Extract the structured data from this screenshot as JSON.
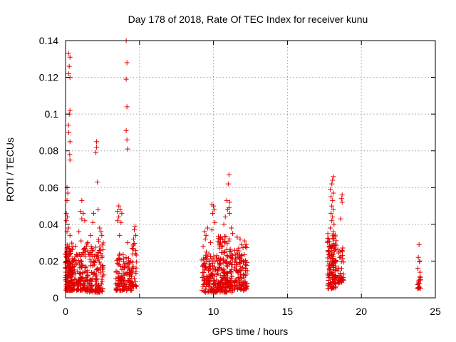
{
  "chart_data": {
    "type": "scatter",
    "title": "Day 178 of 2018, Rate Of TEC Index for receiver kunu",
    "xlabel": "GPS time / hours",
    "ylabel": "ROTI / TECUs",
    "xlim": [
      0,
      25
    ],
    "ylim": [
      0,
      0.14
    ],
    "grid": true,
    "marker": "+",
    "color": "#e00000",
    "xticks": [
      {
        "value": 0,
        "label": "0"
      },
      {
        "value": 5,
        "label": "5"
      },
      {
        "value": 10,
        "label": "10"
      },
      {
        "value": 15,
        "label": "15"
      },
      {
        "value": 20,
        "label": "20"
      },
      {
        "value": 25,
        "label": "25"
      }
    ],
    "yticks": [
      {
        "value": 0,
        "label": "0"
      },
      {
        "value": 0.02,
        "label": "0.02"
      },
      {
        "value": 0.04,
        "label": "0.04"
      },
      {
        "value": 0.06,
        "label": "0.06"
      },
      {
        "value": 0.08,
        "label": "0.08"
      },
      {
        "value": 0.1,
        "label": "0.1"
      },
      {
        "value": 0.12,
        "label": "0.12"
      },
      {
        "value": 0.14,
        "label": "0.14"
      }
    ],
    "clusters": [
      {
        "x": [
          0.0,
          0.5
        ],
        "ylo": 0.004,
        "yhi": 0.03,
        "n": 150
      },
      {
        "x": [
          0.5,
          1.2
        ],
        "ylo": 0.004,
        "yhi": 0.025,
        "n": 90
      },
      {
        "x": [
          1.2,
          2.0
        ],
        "ylo": 0.003,
        "yhi": 0.03,
        "n": 90
      },
      {
        "x": [
          2.0,
          2.6
        ],
        "ylo": 0.003,
        "yhi": 0.032,
        "n": 70
      },
      {
        "x": [
          3.4,
          4.0
        ],
        "ylo": 0.004,
        "yhi": 0.025,
        "n": 80
      },
      {
        "x": [
          4.0,
          4.5
        ],
        "ylo": 0.004,
        "yhi": 0.022,
        "n": 50
      },
      {
        "x": [
          4.5,
          4.8
        ],
        "ylo": 0.006,
        "yhi": 0.03,
        "n": 30
      },
      {
        "x": [
          9.2,
          10.3
        ],
        "ylo": 0.003,
        "yhi": 0.025,
        "n": 130
      },
      {
        "x": [
          10.3,
          11.3
        ],
        "ylo": 0.003,
        "yhi": 0.034,
        "n": 170
      },
      {
        "x": [
          11.4,
          12.3
        ],
        "ylo": 0.004,
        "yhi": 0.028,
        "n": 110
      },
      {
        "x": [
          17.7,
          18.3
        ],
        "ylo": 0.005,
        "yhi": 0.035,
        "n": 130
      },
      {
        "x": [
          18.4,
          18.8
        ],
        "ylo": 0.008,
        "yhi": 0.028,
        "n": 40
      },
      {
        "x": [
          23.8,
          24.0
        ],
        "ylo": 0.005,
        "yhi": 0.022,
        "n": 20
      }
    ],
    "points": [
      {
        "x": 0.2,
        "y": 0.133
      },
      {
        "x": 0.3,
        "y": 0.131
      },
      {
        "x": 0.25,
        "y": 0.126
      },
      {
        "x": 0.2,
        "y": 0.122
      },
      {
        "x": 0.3,
        "y": 0.12
      },
      {
        "x": 0.3,
        "y": 0.102
      },
      {
        "x": 0.25,
        "y": 0.1
      },
      {
        "x": 0.2,
        "y": 0.094
      },
      {
        "x": 0.22,
        "y": 0.09
      },
      {
        "x": 0.3,
        "y": 0.085
      },
      {
        "x": 0.28,
        "y": 0.078
      },
      {
        "x": 0.3,
        "y": 0.075
      },
      {
        "x": 0.1,
        "y": 0.06
      },
      {
        "x": 0.15,
        "y": 0.057
      },
      {
        "x": 0.1,
        "y": 0.053
      },
      {
        "x": 0.05,
        "y": 0.046
      },
      {
        "x": 0.12,
        "y": 0.044
      },
      {
        "x": 0.05,
        "y": 0.042
      },
      {
        "x": 0.2,
        "y": 0.038
      },
      {
        "x": 0.1,
        "y": 0.036
      },
      {
        "x": 0.3,
        "y": 0.034
      },
      {
        "x": 1.1,
        "y": 0.053
      },
      {
        "x": 1.0,
        "y": 0.047
      },
      {
        "x": 1.2,
        "y": 0.046
      },
      {
        "x": 1.1,
        "y": 0.043
      },
      {
        "x": 1.3,
        "y": 0.042
      },
      {
        "x": 0.9,
        "y": 0.036
      },
      {
        "x": 1.05,
        "y": 0.031
      },
      {
        "x": 0.65,
        "y": 0.028
      },
      {
        "x": 2.1,
        "y": 0.085
      },
      {
        "x": 2.1,
        "y": 0.082
      },
      {
        "x": 2.05,
        "y": 0.079
      },
      {
        "x": 2.15,
        "y": 0.063
      },
      {
        "x": 1.9,
        "y": 0.046
      },
      {
        "x": 2.2,
        "y": 0.048
      },
      {
        "x": 2.3,
        "y": 0.038
      },
      {
        "x": 1.85,
        "y": 0.041
      },
      {
        "x": 1.7,
        "y": 0.034
      },
      {
        "x": 1.5,
        "y": 0.03
      },
      {
        "x": 2.45,
        "y": 0.034
      },
      {
        "x": 2.4,
        "y": 0.036
      },
      {
        "x": 4.1,
        "y": 0.14
      },
      {
        "x": 4.15,
        "y": 0.128
      },
      {
        "x": 4.1,
        "y": 0.119
      },
      {
        "x": 4.15,
        "y": 0.104
      },
      {
        "x": 4.1,
        "y": 0.091
      },
      {
        "x": 4.15,
        "y": 0.086
      },
      {
        "x": 4.2,
        "y": 0.081
      },
      {
        "x": 3.6,
        "y": 0.05
      },
      {
        "x": 3.7,
        "y": 0.048
      },
      {
        "x": 3.5,
        "y": 0.047
      },
      {
        "x": 3.8,
        "y": 0.046
      },
      {
        "x": 3.6,
        "y": 0.044
      },
      {
        "x": 3.5,
        "y": 0.042
      },
      {
        "x": 3.75,
        "y": 0.041
      },
      {
        "x": 3.65,
        "y": 0.034
      },
      {
        "x": 4.7,
        "y": 0.039
      },
      {
        "x": 4.65,
        "y": 0.037
      },
      {
        "x": 4.75,
        "y": 0.034
      },
      {
        "x": 4.6,
        "y": 0.032
      },
      {
        "x": 4.2,
        "y": 0.03
      },
      {
        "x": 4.5,
        "y": 0.027
      },
      {
        "x": 9.6,
        "y": 0.038
      },
      {
        "x": 9.4,
        "y": 0.036
      },
      {
        "x": 9.5,
        "y": 0.034
      },
      {
        "x": 9.45,
        "y": 0.032
      },
      {
        "x": 9.9,
        "y": 0.037
      },
      {
        "x": 9.8,
        "y": 0.03
      },
      {
        "x": 9.3,
        "y": 0.028
      },
      {
        "x": 9.9,
        "y": 0.051
      },
      {
        "x": 10.0,
        "y": 0.05
      },
      {
        "x": 10.05,
        "y": 0.048
      },
      {
        "x": 9.95,
        "y": 0.046
      },
      {
        "x": 10.1,
        "y": 0.041
      },
      {
        "x": 11.05,
        "y": 0.067
      },
      {
        "x": 11.0,
        "y": 0.062
      },
      {
        "x": 10.9,
        "y": 0.053
      },
      {
        "x": 11.1,
        "y": 0.052
      },
      {
        "x": 11.05,
        "y": 0.049
      },
      {
        "x": 10.95,
        "y": 0.048
      },
      {
        "x": 11.1,
        "y": 0.046
      },
      {
        "x": 10.8,
        "y": 0.044
      },
      {
        "x": 10.7,
        "y": 0.04
      },
      {
        "x": 11.2,
        "y": 0.038
      },
      {
        "x": 11.3,
        "y": 0.035
      },
      {
        "x": 11.6,
        "y": 0.033
      },
      {
        "x": 11.8,
        "y": 0.032
      },
      {
        "x": 12.1,
        "y": 0.031
      },
      {
        "x": 12.2,
        "y": 0.029
      },
      {
        "x": 11.9,
        "y": 0.029
      },
      {
        "x": 18.1,
        "y": 0.066
      },
      {
        "x": 18.05,
        "y": 0.064
      },
      {
        "x": 18.0,
        "y": 0.062
      },
      {
        "x": 17.9,
        "y": 0.059
      },
      {
        "x": 18.1,
        "y": 0.057
      },
      {
        "x": 17.95,
        "y": 0.055
      },
      {
        "x": 18.05,
        "y": 0.053
      },
      {
        "x": 18.0,
        "y": 0.05
      },
      {
        "x": 18.1,
        "y": 0.048
      },
      {
        "x": 17.95,
        "y": 0.046
      },
      {
        "x": 18.05,
        "y": 0.044
      },
      {
        "x": 18.0,
        "y": 0.042
      },
      {
        "x": 18.15,
        "y": 0.04
      },
      {
        "x": 17.9,
        "y": 0.038
      },
      {
        "x": 18.1,
        "y": 0.036
      },
      {
        "x": 18.7,
        "y": 0.056
      },
      {
        "x": 18.65,
        "y": 0.054
      },
      {
        "x": 18.7,
        "y": 0.052
      },
      {
        "x": 18.6,
        "y": 0.043
      },
      {
        "x": 23.9,
        "y": 0.029
      },
      {
        "x": 23.85,
        "y": 0.022
      },
      {
        "x": 23.95,
        "y": 0.02
      }
    ]
  }
}
